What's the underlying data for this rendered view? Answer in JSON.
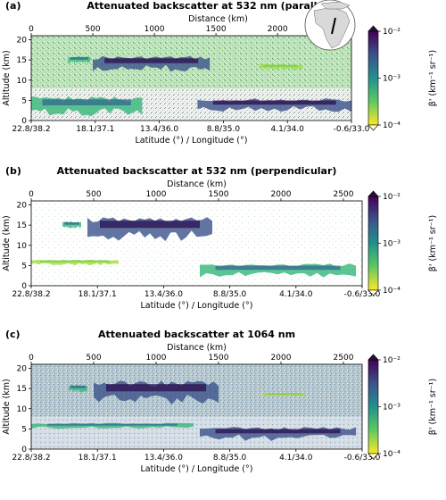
{
  "chart_data": [
    {
      "type": "heatmap",
      "panel_label": "(a)",
      "title": "Attenuated backscatter at 532 nm (parallel)",
      "top_xlabel": "Distance (km)",
      "top_ticks": [
        0,
        500,
        1000,
        1500,
        2000
      ],
      "top_range": [
        0,
        2600
      ],
      "ylabel": "Altitude (km)",
      "yticks": [
        0,
        5,
        10,
        15,
        20
      ],
      "ylim": [
        0,
        21
      ],
      "xlabel": "Latitude (°) / Longitude (°)",
      "bottom_ticks": [
        "22.8/38.2",
        "18.1/37.1",
        "13.4/36.0",
        "8.8/35.0",
        "4.1/34.0",
        "-0.6/33.0"
      ],
      "colorbar": {
        "label": "β' (km⁻¹ sr⁻¹)",
        "ticks": [
          "10⁻²",
          "10⁻³",
          "10⁻⁴"
        ],
        "scale": "log",
        "range": [
          0.0001,
          0.01
        ]
      },
      "inset": "globe map with flight track over East Africa",
      "background_style": "green",
      "cloud_layers": [
        {
          "x": [
            500,
            1450
          ],
          "alt": [
            12,
            16
          ],
          "strength": "strong"
        },
        {
          "x": [
            300,
            480
          ],
          "alt": [
            14,
            16
          ],
          "strength": "medium"
        },
        {
          "x": [
            1850,
            2200
          ],
          "alt": [
            12.5,
            14
          ],
          "strength": "weak"
        },
        {
          "x": [
            1350,
            2600
          ],
          "alt": [
            2,
            5.5
          ],
          "strength": "strong"
        },
        {
          "x": [
            0,
            900
          ],
          "alt": [
            1,
            6
          ],
          "strength": "medium"
        }
      ]
    },
    {
      "type": "heatmap",
      "panel_label": "(b)",
      "title": "Attenuated backscatter at 532 nm (perpendicular)",
      "top_xlabel": "Distance (km)",
      "top_ticks": [
        0,
        500,
        1000,
        1500,
        2000,
        2500
      ],
      "top_range": [
        0,
        2650
      ],
      "ylabel": "Altitude (km)",
      "yticks": [
        0,
        5,
        10,
        15,
        20
      ],
      "ylim": [
        0,
        21
      ],
      "xlabel": "Latitude (°) / Longitude (°)",
      "bottom_ticks": [
        "22.8/38.2",
        "18.1/37.1",
        "13.4/36.0",
        "8.8/35.0",
        "4.1/34.0",
        "-0.6/33.0"
      ],
      "colorbar": {
        "label": "β' (km⁻¹ sr⁻¹)",
        "ticks": [
          "10⁻²",
          "10⁻³",
          "10⁻⁴"
        ],
        "scale": "log",
        "range": [
          0.0001,
          0.01
        ]
      },
      "background_style": "white",
      "cloud_layers": [
        {
          "x": [
            450,
            1450
          ],
          "alt": [
            11,
            17
          ],
          "strength": "strong"
        },
        {
          "x": [
            250,
            400
          ],
          "alt": [
            14,
            16
          ],
          "strength": "medium"
        },
        {
          "x": [
            1350,
            2600
          ],
          "alt": [
            2,
            5.5
          ],
          "strength": "medium"
        },
        {
          "x": [
            0,
            700
          ],
          "alt": [
            5,
            6.5
          ],
          "strength": "weak"
        }
      ]
    },
    {
      "type": "heatmap",
      "panel_label": "(c)",
      "title": "Attenuated backscatter at 1064 nm",
      "top_xlabel": "Distance (km)",
      "top_ticks": [
        0,
        500,
        1000,
        1500,
        2000,
        2500
      ],
      "top_range": [
        0,
        2650
      ],
      "ylabel": "Altitude (km)",
      "yticks": [
        0,
        5,
        10,
        15,
        20
      ],
      "ylim": [
        0,
        21
      ],
      "xlabel": "Latitude (°) / Longitude (°)",
      "bottom_ticks": [
        "22.8/38.2",
        "18.1/37.1",
        "13.4/36.0",
        "8.8/35.0",
        "4.1/34.0",
        "-0.6/33.0"
      ],
      "colorbar": {
        "label": "β' (km⁻¹ sr⁻¹)",
        "ticks": [
          "10⁻²",
          "10⁻³",
          "10⁻⁴"
        ],
        "scale": "log",
        "range": [
          0.0001,
          0.01
        ]
      },
      "background_style": "blue-gray",
      "cloud_layers": [
        {
          "x": [
            500,
            1500
          ],
          "alt": [
            11,
            17
          ],
          "strength": "strong"
        },
        {
          "x": [
            300,
            450
          ],
          "alt": [
            14,
            16
          ],
          "strength": "medium"
        },
        {
          "x": [
            1850,
            2200
          ],
          "alt": [
            13,
            14
          ],
          "strength": "weak"
        },
        {
          "x": [
            1350,
            2600
          ],
          "alt": [
            2,
            5.5
          ],
          "strength": "strong"
        },
        {
          "x": [
            0,
            1300
          ],
          "alt": [
            5,
            6.5
          ],
          "strength": "medium"
        }
      ]
    }
  ]
}
